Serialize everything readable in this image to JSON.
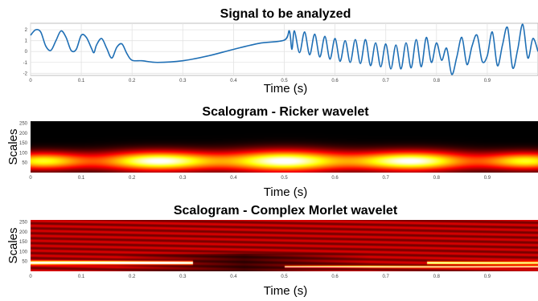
{
  "chart_data": [
    {
      "type": "line",
      "title": "Signal to be analyzed",
      "xlabel": "Time (s)",
      "ylabel": "",
      "xlim": [
        0,
        1
      ],
      "ylim": [
        -2.2,
        2.6
      ],
      "grid": true,
      "x_ticks": [
        "0",
        "0.1",
        "0.2",
        "0.3",
        "0.4",
        "0.5",
        "0.6",
        "0.7",
        "0.8",
        "0.9"
      ],
      "y_ticks": [
        "2",
        "1",
        "0",
        "-1",
        "-2"
      ],
      "series_color": "#1f6fb5",
      "segments": [
        {
          "x_range": [
            0,
            0.2
          ],
          "description": "damped sinusoid bursts ~ 20-30 Hz, amplitude ~1.3, offset ~0.7"
        },
        {
          "x_range": [
            0.2,
            0.5
          ],
          "description": "smooth low-frequency curve from -0.8 dipping to -1.0 near t=0.25 then rising to 1.1 at t=0.5"
        },
        {
          "x_range": [
            0.5,
            1.0
          ],
          "description": "higher-frequency oscillation ~ 40 Hz, amplitude ~1.2-1.8, with a dip near 0.8"
        }
      ],
      "points": [
        [
          0.0,
          1.5
        ],
        [
          0.01,
          2.0
        ],
        [
          0.02,
          1.8
        ],
        [
          0.03,
          0.5
        ],
        [
          0.04,
          0.1
        ],
        [
          0.05,
          1.0
        ],
        [
          0.06,
          1.9
        ],
        [
          0.07,
          1.3
        ],
        [
          0.08,
          0.1
        ],
        [
          0.09,
          0.2
        ],
        [
          0.1,
          1.5
        ],
        [
          0.11,
          1.3
        ],
        [
          0.12,
          0.3
        ],
        [
          0.125,
          -0.1
        ],
        [
          0.13,
          0.6
        ],
        [
          0.14,
          1.2
        ],
        [
          0.15,
          0.3
        ],
        [
          0.16,
          -0.6
        ],
        [
          0.17,
          0.4
        ],
        [
          0.18,
          0.7
        ],
        [
          0.19,
          -0.2
        ],
        [
          0.2,
          -0.8
        ],
        [
          0.22,
          -0.85
        ],
        [
          0.25,
          -1.0
        ],
        [
          0.3,
          -0.85
        ],
        [
          0.35,
          -0.4
        ],
        [
          0.4,
          0.2
        ],
        [
          0.45,
          0.75
        ],
        [
          0.5,
          1.05
        ],
        [
          0.51,
          1.9
        ],
        [
          0.515,
          0.2
        ],
        [
          0.52,
          1.9
        ],
        [
          0.53,
          -0.1
        ],
        [
          0.54,
          1.8
        ],
        [
          0.55,
          -0.3
        ],
        [
          0.56,
          1.6
        ],
        [
          0.57,
          -0.5
        ],
        [
          0.58,
          1.4
        ],
        [
          0.59,
          -0.7
        ],
        [
          0.6,
          1.2
        ],
        [
          0.61,
          -0.9
        ],
        [
          0.62,
          1.0
        ],
        [
          0.63,
          -1.0
        ],
        [
          0.64,
          1.1
        ],
        [
          0.65,
          -1.1
        ],
        [
          0.66,
          1.1
        ],
        [
          0.67,
          -1.3
        ],
        [
          0.68,
          0.8
        ],
        [
          0.69,
          -1.4
        ],
        [
          0.7,
          0.7
        ],
        [
          0.71,
          -1.6
        ],
        [
          0.72,
          0.6
        ],
        [
          0.73,
          -1.6
        ],
        [
          0.74,
          0.8
        ],
        [
          0.75,
          -1.5
        ],
        [
          0.76,
          1.1
        ],
        [
          0.77,
          -1.4
        ],
        [
          0.78,
          1.3
        ],
        [
          0.79,
          -1.0
        ],
        [
          0.8,
          0.8
        ],
        [
          0.81,
          -0.8
        ],
        [
          0.82,
          0.3
        ],
        [
          0.83,
          -2.1
        ],
        [
          0.84,
          -0.5
        ],
        [
          0.85,
          1.3
        ],
        [
          0.86,
          -1.2
        ],
        [
          0.87,
          0.5
        ],
        [
          0.88,
          1.5
        ],
        [
          0.89,
          -0.9
        ],
        [
          0.9,
          -0.4
        ],
        [
          0.91,
          1.8
        ],
        [
          0.92,
          -1.3
        ],
        [
          0.93,
          0.6
        ],
        [
          0.94,
          2.2
        ],
        [
          0.95,
          -1.5
        ],
        [
          0.96,
          0.2
        ],
        [
          0.97,
          2.5
        ],
        [
          0.98,
          -0.6
        ],
        [
          0.99,
          1.2
        ],
        [
          1.0,
          0.0
        ]
      ]
    },
    {
      "type": "heatmap",
      "title": "Scalogram - Ricker wavelet",
      "xlabel": "Time (s)",
      "ylabel": "Scales",
      "xlim": [
        0,
        1
      ],
      "ylim": [
        0,
        260
      ],
      "x_ticks": [
        "0",
        "0.1",
        "0.2",
        "0.3",
        "0.4",
        "0.5",
        "0.6",
        "0.7",
        "0.8",
        "0.9"
      ],
      "y_ticks": [
        "250",
        "200",
        "150",
        "100",
        "50"
      ],
      "colormap": "hot",
      "blobs": [
        {
          "t": 0.02,
          "scale": 60,
          "t_width": 0.09,
          "s_width": 45,
          "intensity": 0.8
        },
        {
          "t": 0.25,
          "scale": 60,
          "t_width": 0.12,
          "s_width": 50,
          "intensity": 1.0
        },
        {
          "t": 0.5,
          "scale": 60,
          "t_width": 0.12,
          "s_width": 55,
          "intensity": 1.0
        },
        {
          "t": 0.75,
          "scale": 60,
          "t_width": 0.12,
          "s_width": 50,
          "intensity": 1.0
        },
        {
          "t": 0.98,
          "scale": 60,
          "t_width": 0.09,
          "s_width": 45,
          "intensity": 0.8
        }
      ]
    },
    {
      "type": "heatmap",
      "title": "Scalogram - Complex Morlet wavelet",
      "xlabel": "Time (s)",
      "ylabel": "Scales",
      "xlim": [
        0,
        1
      ],
      "ylim": [
        0,
        260
      ],
      "x_ticks": [
        "0",
        "0.1",
        "0.2",
        "0.3",
        "0.4",
        "0.5",
        "0.6",
        "0.7",
        "0.8",
        "0.9"
      ],
      "y_ticks": [
        "250",
        "200",
        "150",
        "100",
        "50"
      ],
      "colormap": "hot",
      "bands": [
        {
          "t_range": [
            0,
            0.32
          ],
          "scale": 45,
          "thickness": 8,
          "intensity": 1.0
        },
        {
          "t_range": [
            0.5,
            1.0
          ],
          "scale": 25,
          "thickness": 4,
          "intensity": 0.9
        },
        {
          "t_range": [
            0.78,
            1.0
          ],
          "scale": 45,
          "thickness": 6,
          "intensity": 0.8
        }
      ],
      "background_intensity": 0.35
    }
  ]
}
